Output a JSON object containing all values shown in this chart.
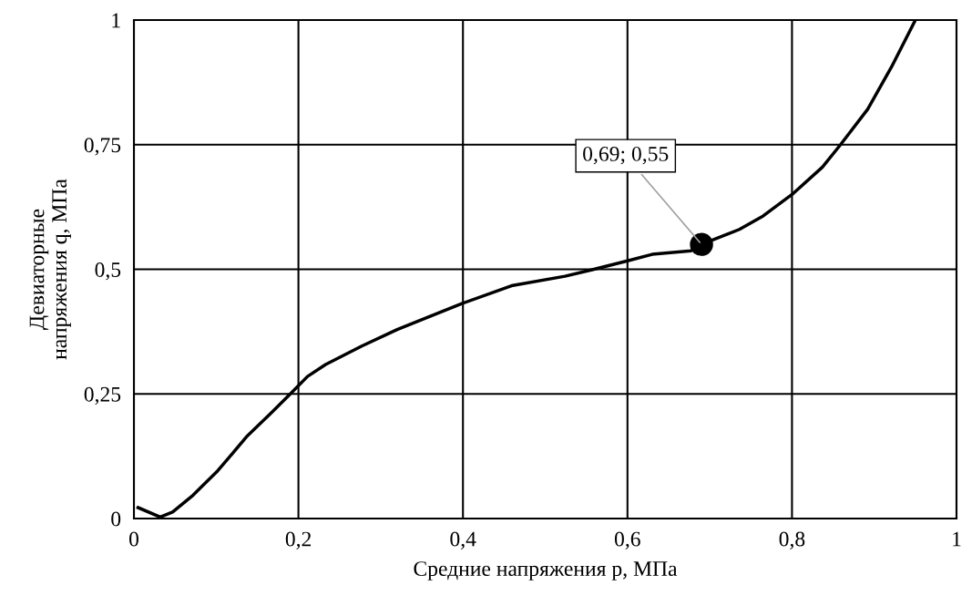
{
  "chart_data": {
    "type": "line",
    "xlabel": "Средние напряжения p, МПа",
    "ylabel": "Девиаторные\nнапряжения q, МПа",
    "series": [
      {
        "color": "#000000",
        "marker": "none",
        "x": [
          0.005,
          0.032,
          0.047,
          0.072,
          0.102,
          0.138,
          0.167,
          0.189,
          0.211,
          0.233,
          0.277,
          0.32,
          0.4,
          0.459,
          0.524,
          0.557,
          0.6,
          0.63,
          0.677,
          0.69,
          0.736,
          0.765,
          0.8,
          0.837,
          0.859,
          0.892,
          0.921,
          0.95
        ],
        "values": [
          0.022,
          0.003,
          0.013,
          0.047,
          0.096,
          0.166,
          0.212,
          0.248,
          0.285,
          0.309,
          0.346,
          0.379,
          0.432,
          0.467,
          0.486,
          0.499,
          0.517,
          0.53,
          0.537,
          0.55,
          0.58,
          0.607,
          0.65,
          0.705,
          0.75,
          0.821,
          0.906,
          1.0
        ]
      },
      {
        "type": "scatter",
        "color": "#000000",
        "marker": "circle",
        "x": [
          0.69
        ],
        "values": [
          0.55
        ]
      }
    ],
    "annotations": [
      {
        "text": "0,69; 0,55",
        "x": 0.69,
        "y": 0.55
      }
    ],
    "xlim": [
      0,
      1
    ],
    "ylim": [
      0,
      1
    ],
    "xticks": [
      0,
      {
        "value": 0.2,
        "label": "0,2"
      },
      {
        "value": 0.4,
        "label": "0,4"
      },
      {
        "value": 0.6,
        "label": "0,6"
      },
      {
        "value": 0.8,
        "label": "0,8"
      },
      1
    ],
    "yticks": [
      0,
      {
        "value": 0.25,
        "label": "0,25"
      },
      {
        "value": 0.5,
        "label": "0,5"
      },
      {
        "value": 0.75,
        "label": "0,75"
      },
      1
    ],
    "grid": true
  }
}
